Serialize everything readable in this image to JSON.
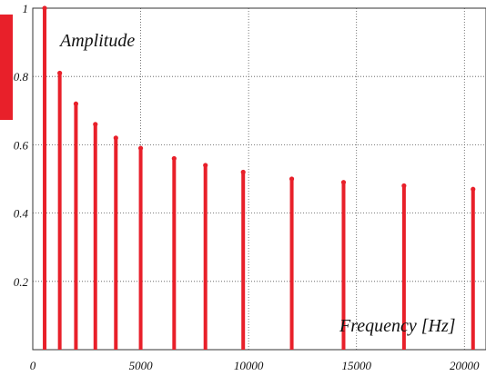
{
  "chart_data": {
    "type": "stem",
    "ylabel": "Amplitude",
    "xlabel": "Frequency [Hz]",
    "xlim": [
      0,
      21000
    ],
    "ylim": [
      0,
      1
    ],
    "x_ticks": [
      0,
      5000,
      10000,
      15000,
      20000
    ],
    "y_ticks": [
      0.2,
      0.4,
      0.6,
      0.8,
      1
    ],
    "x_tick_labels": [
      "0",
      "5000",
      "10000",
      "15000",
      "20000"
    ],
    "y_tick_labels": [
      "0.2",
      "0.4",
      "0.6",
      "0.8",
      "1"
    ],
    "grid": true,
    "color": "#e8202a",
    "series": [
      {
        "x": [
          550,
          1250,
          2000,
          2900,
          3850,
          5000,
          6550,
          8000,
          9750,
          12000,
          14400,
          17200,
          20400
        ],
        "values": [
          1.0,
          0.81,
          0.72,
          0.66,
          0.62,
          0.59,
          0.56,
          0.54,
          0.52,
          0.5,
          0.49,
          0.48,
          0.47
        ]
      }
    ]
  }
}
